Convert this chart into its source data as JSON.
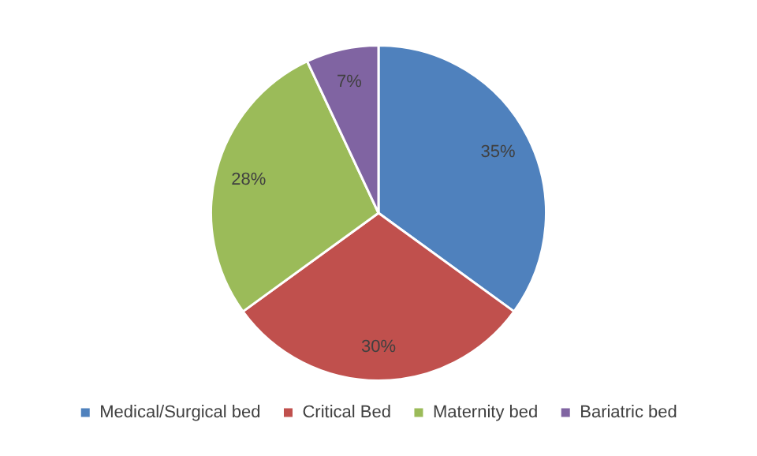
{
  "chart_data": {
    "type": "pie",
    "categories": [
      "Medical/Surgical bed",
      "Critical Bed",
      "Maternity bed",
      "Bariatric bed"
    ],
    "values": [
      35,
      30,
      28,
      7
    ],
    "colors": [
      "#4f81bd",
      "#c0504d",
      "#9bbb59",
      "#8064a2"
    ],
    "value_labels": [
      "35%",
      "30%",
      "28%",
      "7%"
    ],
    "legend": "bottom"
  }
}
